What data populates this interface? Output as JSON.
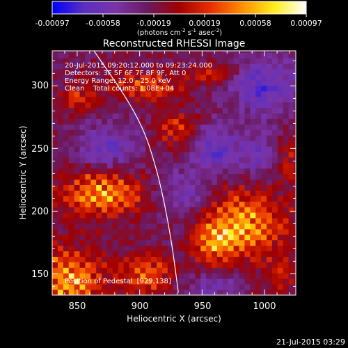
{
  "chart_data": {
    "type": "heatmap",
    "title": "Reconstructed RHESSI Image",
    "xlabel": "Heliocentric X (arcsec)",
    "ylabel": "Heliocentric Y (arcsec)",
    "xlim": [
      830,
      1025
    ],
    "ylim": [
      133,
      328
    ],
    "x_ticks": [
      850,
      900,
      950,
      1000
    ],
    "y_ticks": [
      150,
      200,
      250,
      300
    ],
    "colorbar": {
      "range": [
        -0.00097,
        0.00097
      ],
      "tick_labels": [
        "-0.00097",
        "-0.00058",
        "-0.00019",
        "0.00019",
        "0.00058",
        "0.00097"
      ],
      "units_prefix": "(photons cm",
      "units_sup1": "-2",
      "units_mid1": " s",
      "units_sup2": "-1",
      "units_mid2": " asec",
      "units_sup3": "-2",
      "units_suffix": ")",
      "stops": [
        "#0000ff",
        "#5a2fbf",
        "#7a34a8",
        "#6a1a60",
        "#a00000",
        "#e83000",
        "#ff9000",
        "#ffee20",
        "#ffffff"
      ]
    },
    "annotations": [
      "20-Jul-2015 09:20:12.000 to 09:23:24.000",
      "Detectors: 3F 5F 6F 7F 8F 9F, Att 0",
      "Energy Range: 12.0 - 25.0 keV",
      "Clean    Total counts: 1.08E+04"
    ],
    "pedestal_label": "Position of Pedestal  [929,138]",
    "limb_curve_points": [
      [
        862,
        330
      ],
      [
        900,
        275
      ],
      [
        915,
        230
      ],
      [
        925,
        180
      ],
      [
        931,
        135
      ]
    ],
    "blobs": [
      {
        "x": 870,
        "y": 215,
        "sx": 22,
        "sy": 14,
        "amp": 0.00095
      },
      {
        "x": 842,
        "y": 145,
        "sx": 20,
        "sy": 18,
        "amp": 0.00097
      },
      {
        "x": 985,
        "y": 190,
        "sx": 22,
        "sy": 18,
        "amp": 0.00095
      },
      {
        "x": 960,
        "y": 175,
        "sx": 12,
        "sy": 12,
        "amp": 0.0007
      },
      {
        "x": 905,
        "y": 150,
        "sx": 14,
        "sy": 10,
        "amp": 0.00075
      },
      {
        "x": 930,
        "y": 265,
        "sx": 12,
        "sy": 10,
        "amp": 0.00055
      },
      {
        "x": 905,
        "y": 300,
        "sx": 22,
        "sy": 8,
        "amp": 0.0006
      },
      {
        "x": 850,
        "y": 290,
        "sx": 10,
        "sy": 8,
        "amp": 0.0005
      },
      {
        "x": 960,
        "y": 310,
        "sx": 14,
        "sy": 5,
        "amp": 0.00045
      },
      {
        "x": 1020,
        "y": 240,
        "sx": 6,
        "sy": 14,
        "amp": 0.00045
      },
      {
        "x": 1015,
        "y": 150,
        "sx": 10,
        "sy": 10,
        "amp": 0.00045
      },
      {
        "x": 875,
        "y": 250,
        "sx": 18,
        "sy": 14,
        "amp": -0.0004
      },
      {
        "x": 960,
        "y": 250,
        "sx": 14,
        "sy": 14,
        "amp": -0.00045
      },
      {
        "x": 1000,
        "y": 300,
        "sx": 18,
        "sy": 16,
        "amp": -0.0005
      },
      {
        "x": 935,
        "y": 215,
        "sx": 14,
        "sy": 12,
        "amp": -0.00035
      },
      {
        "x": 995,
        "y": 245,
        "sx": 10,
        "sy": 10,
        "amp": -0.0004
      },
      {
        "x": 960,
        "y": 140,
        "sx": 14,
        "sy": 8,
        "amp": -0.0003
      }
    ]
  },
  "footer": {
    "timestamp": "21-Jul-2015 03:29"
  }
}
